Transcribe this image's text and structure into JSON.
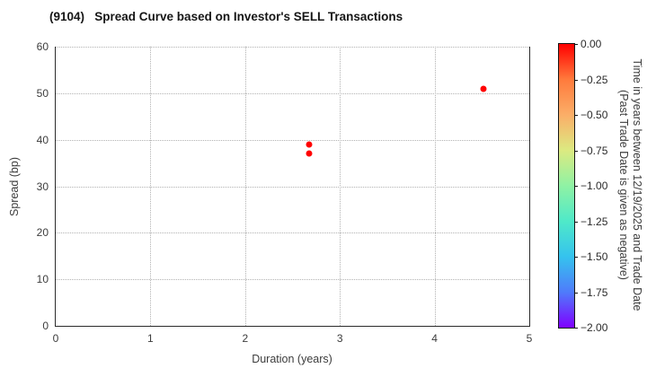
{
  "title": "(9104)   Spread Curve based on Investor's SELL Transactions",
  "chart_data": {
    "type": "scatter",
    "title": "(9104) Spread Curve based on Investor's SELL Transactions",
    "xlabel": "Duration (years)",
    "ylabel": "Spread (bp)",
    "xlim": [
      0,
      5
    ],
    "ylim": [
      0,
      60
    ],
    "xticks": [
      0,
      1,
      2,
      3,
      4,
      5
    ],
    "yticks": [
      0,
      10,
      20,
      30,
      40,
      50,
      60
    ],
    "grid": "dotted",
    "legend_position": "none",
    "points": [
      {
        "x": 2.68,
        "y": 39.0,
        "color_value": 0.0,
        "color": "#ff0000"
      },
      {
        "x": 2.68,
        "y": 37.0,
        "color_value": 0.0,
        "color": "#ff0000"
      },
      {
        "x": 4.52,
        "y": 50.9,
        "color_value": 0.0,
        "color": "#ff0000"
      }
    ],
    "colorbar": {
      "label_line1": "Time in years between 12/19/2025 and Trade Date",
      "label_line2": "(Past Trade Date is given as negative)",
      "tick_labels": [
        "0.00",
        "−0.25",
        "−0.50",
        "−0.75",
        "−1.00",
        "−1.25",
        "−1.50",
        "−1.75",
        "−2.00"
      ],
      "value_range": [
        0.0,
        -2.0
      ],
      "gradient": [
        "#ff0000",
        "#ff7a3c",
        "#fbae68",
        "#dcea81",
        "#8ff2a4",
        "#4fe9c9",
        "#35c3ee",
        "#4f7bfb",
        "#7f00ff"
      ]
    }
  }
}
